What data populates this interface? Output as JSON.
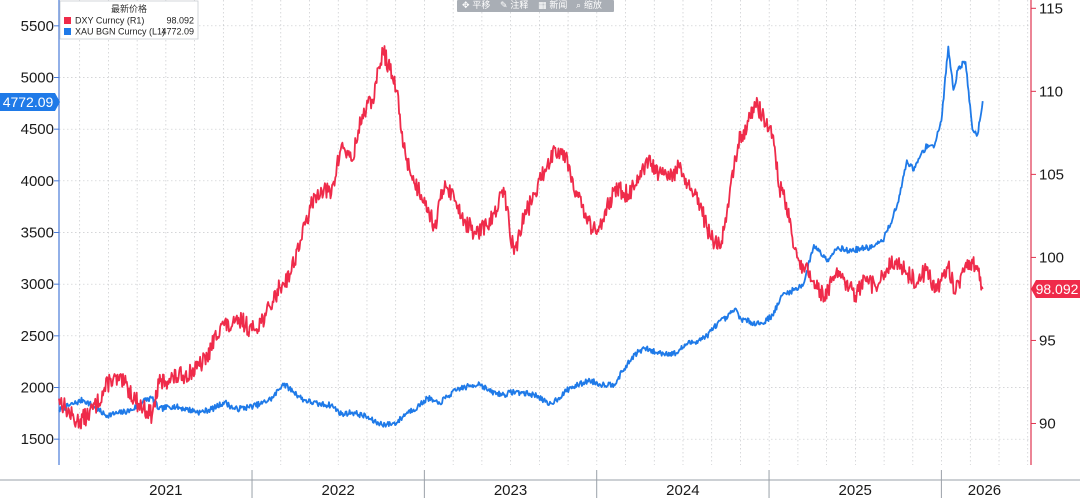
{
  "toolbar": {
    "items": [
      "✥ 平移",
      "✎ 注释",
      "▦ 新闻",
      "⌕ 缩放"
    ]
  },
  "legend": {
    "title": "最新价格",
    "entries": [
      {
        "label": "DXY Curncy  (R1)",
        "value": "98.092",
        "color": "#ef2b4a"
      },
      {
        "label": "XAU BGN Curncy  (L1)",
        "value": "4772.09",
        "color": "#1f7ae8"
      }
    ]
  },
  "tags": {
    "left_value": "4772.09",
    "right_value": "98.092"
  },
  "chart_data": {
    "type": "line",
    "title": "",
    "left_axis": {
      "ylim": [
        1250,
        5750
      ],
      "ticks": [
        1500,
        2000,
        2500,
        3000,
        3500,
        4000,
        4500,
        5000,
        5500
      ]
    },
    "right_axis": {
      "ylim": [
        87.5,
        115.5
      ],
      "ticks": [
        90,
        95,
        100,
        105,
        110,
        115
      ]
    },
    "x_axis": {
      "xlim": [
        2020.88,
        2026.52
      ],
      "year_labels": [
        "2021",
        "2022",
        "2023",
        "2024",
        "2025",
        "2026"
      ],
      "year_label_positions": [
        2021.5,
        2022.5,
        2023.5,
        2024.5,
        2025.5,
        2026.25
      ],
      "year_boundaries": [
        2022.0,
        2023.0,
        2024.0,
        2025.0,
        2026.0
      ]
    },
    "series": [
      {
        "name": "XAU BGN Curncy",
        "axis": "left",
        "color": "#1f7ae8",
        "points": [
          [
            2020.88,
            1780
          ],
          [
            2020.96,
            1840
          ],
          [
            2021.02,
            1880
          ],
          [
            2021.08,
            1820
          ],
          [
            2021.15,
            1730
          ],
          [
            2021.22,
            1750
          ],
          [
            2021.3,
            1780
          ],
          [
            2021.38,
            1880
          ],
          [
            2021.42,
            1900
          ],
          [
            2021.46,
            1790
          ],
          [
            2021.54,
            1820
          ],
          [
            2021.62,
            1790
          ],
          [
            2021.7,
            1760
          ],
          [
            2021.78,
            1800
          ],
          [
            2021.84,
            1860
          ],
          [
            2021.9,
            1790
          ],
          [
            2021.98,
            1810
          ],
          [
            2022.05,
            1840
          ],
          [
            2022.12,
            1900
          ],
          [
            2022.18,
            2040
          ],
          [
            2022.24,
            1960
          ],
          [
            2022.3,
            1880
          ],
          [
            2022.38,
            1840
          ],
          [
            2022.46,
            1830
          ],
          [
            2022.52,
            1740
          ],
          [
            2022.58,
            1760
          ],
          [
            2022.66,
            1720
          ],
          [
            2022.72,
            1660
          ],
          [
            2022.78,
            1640
          ],
          [
            2022.84,
            1660
          ],
          [
            2022.9,
            1760
          ],
          [
            2022.96,
            1810
          ],
          [
            2023.02,
            1900
          ],
          [
            2023.08,
            1840
          ],
          [
            2023.14,
            1920
          ],
          [
            2023.2,
            1990
          ],
          [
            2023.26,
            2010
          ],
          [
            2023.32,
            2040
          ],
          [
            2023.38,
            1960
          ],
          [
            2023.46,
            1930
          ],
          [
            2023.52,
            1960
          ],
          [
            2023.6,
            1940
          ],
          [
            2023.66,
            1920
          ],
          [
            2023.72,
            1830
          ],
          [
            2023.78,
            1900
          ],
          [
            2023.84,
            1990
          ],
          [
            2023.9,
            2030
          ],
          [
            2023.96,
            2070
          ],
          [
            2024.02,
            2030
          ],
          [
            2024.1,
            2030
          ],
          [
            2024.16,
            2180
          ],
          [
            2024.22,
            2320
          ],
          [
            2024.28,
            2380
          ],
          [
            2024.34,
            2340
          ],
          [
            2024.4,
            2330
          ],
          [
            2024.46,
            2330
          ],
          [
            2024.52,
            2420
          ],
          [
            2024.58,
            2450
          ],
          [
            2024.64,
            2500
          ],
          [
            2024.7,
            2620
          ],
          [
            2024.76,
            2680
          ],
          [
            2024.8,
            2760
          ],
          [
            2024.84,
            2660
          ],
          [
            2024.9,
            2630
          ],
          [
            2024.96,
            2620
          ],
          [
            2025.02,
            2700
          ],
          [
            2025.08,
            2900
          ],
          [
            2025.14,
            2940
          ],
          [
            2025.2,
            3000
          ],
          [
            2025.26,
            3380
          ],
          [
            2025.3,
            3300
          ],
          [
            2025.34,
            3240
          ],
          [
            2025.4,
            3360
          ],
          [
            2025.46,
            3320
          ],
          [
            2025.52,
            3340
          ],
          [
            2025.6,
            3360
          ],
          [
            2025.66,
            3420
          ],
          [
            2025.72,
            3650
          ],
          [
            2025.76,
            3870
          ],
          [
            2025.8,
            4200
          ],
          [
            2025.84,
            4100
          ],
          [
            2025.88,
            4250
          ],
          [
            2025.92,
            4350
          ],
          [
            2025.96,
            4340
          ],
          [
            2026.0,
            4580
          ],
          [
            2026.04,
            5300
          ],
          [
            2026.07,
            4880
          ],
          [
            2026.1,
            5100
          ],
          [
            2026.14,
            5150
          ],
          [
            2026.18,
            4500
          ],
          [
            2026.21,
            4450
          ],
          [
            2026.24,
            4772
          ]
        ]
      },
      {
        "name": "DXY Curncy",
        "axis": "right",
        "color": "#ef2b4a",
        "points": [
          [
            2020.88,
            91.5
          ],
          [
            2020.92,
            90.9
          ],
          [
            2020.98,
            90.1
          ],
          [
            2021.04,
            90.4
          ],
          [
            2021.1,
            91.2
          ],
          [
            2021.18,
            92.7
          ],
          [
            2021.26,
            92.4
          ],
          [
            2021.34,
            91.2
          ],
          [
            2021.42,
            90.5
          ],
          [
            2021.46,
            92.4
          ],
          [
            2021.52,
            92.7
          ],
          [
            2021.6,
            92.9
          ],
          [
            2021.68,
            93.3
          ],
          [
            2021.74,
            94.0
          ],
          [
            2021.82,
            96.0
          ],
          [
            2021.88,
            95.8
          ],
          [
            2021.94,
            96.2
          ],
          [
            2022.0,
            95.6
          ],
          [
            2022.08,
            96.5
          ],
          [
            2022.16,
            98.2
          ],
          [
            2022.22,
            99.0
          ],
          [
            2022.28,
            101.0
          ],
          [
            2022.34,
            103.0
          ],
          [
            2022.4,
            104.2
          ],
          [
            2022.46,
            103.8
          ],
          [
            2022.52,
            106.8
          ],
          [
            2022.58,
            105.8
          ],
          [
            2022.64,
            108.6
          ],
          [
            2022.7,
            109.5
          ],
          [
            2022.76,
            112.5
          ],
          [
            2022.8,
            111.3
          ],
          [
            2022.84,
            110.0
          ],
          [
            2022.88,
            106.6
          ],
          [
            2022.94,
            104.5
          ],
          [
            2023.0,
            103.6
          ],
          [
            2023.06,
            101.8
          ],
          [
            2023.12,
            104.6
          ],
          [
            2023.18,
            103.4
          ],
          [
            2023.24,
            102.1
          ],
          [
            2023.3,
            101.4
          ],
          [
            2023.36,
            101.9
          ],
          [
            2023.42,
            102.8
          ],
          [
            2023.46,
            104.2
          ],
          [
            2023.52,
            100.2
          ],
          [
            2023.58,
            102.5
          ],
          [
            2023.64,
            103.8
          ],
          [
            2023.7,
            105.3
          ],
          [
            2023.76,
            106.6
          ],
          [
            2023.82,
            106.2
          ],
          [
            2023.88,
            104.0
          ],
          [
            2023.94,
            102.3
          ],
          [
            2024.0,
            101.4
          ],
          [
            2024.06,
            103.2
          ],
          [
            2024.12,
            104.1
          ],
          [
            2024.18,
            103.8
          ],
          [
            2024.24,
            104.5
          ],
          [
            2024.3,
            105.8
          ],
          [
            2024.36,
            105.0
          ],
          [
            2024.42,
            104.8
          ],
          [
            2024.48,
            105.4
          ],
          [
            2024.54,
            104.1
          ],
          [
            2024.6,
            103.1
          ],
          [
            2024.66,
            101.2
          ],
          [
            2024.72,
            100.6
          ],
          [
            2024.76,
            103.2
          ],
          [
            2024.82,
            106.8
          ],
          [
            2024.88,
            108.2
          ],
          [
            2024.92,
            109.3
          ],
          [
            2024.96,
            108.6
          ],
          [
            2025.02,
            107.4
          ],
          [
            2025.06,
            104.2
          ],
          [
            2025.1,
            103.3
          ],
          [
            2025.14,
            100.6
          ],
          [
            2025.2,
            99.4
          ],
          [
            2025.26,
            98.6
          ],
          [
            2025.32,
            97.6
          ],
          [
            2025.38,
            98.9
          ],
          [
            2025.44,
            98.5
          ],
          [
            2025.5,
            97.7
          ],
          [
            2025.56,
            98.6
          ],
          [
            2025.62,
            98.2
          ],
          [
            2025.68,
            99.2
          ],
          [
            2025.74,
            99.9
          ],
          [
            2025.8,
            99.0
          ],
          [
            2025.86,
            98.5
          ],
          [
            2025.92,
            99.4
          ],
          [
            2025.96,
            97.9
          ],
          [
            2026.0,
            98.6
          ],
          [
            2026.04,
            99.6
          ],
          [
            2026.08,
            97.8
          ],
          [
            2026.12,
            99.1
          ],
          [
            2026.16,
            99.8
          ],
          [
            2026.2,
            99.5
          ],
          [
            2026.24,
            98.1
          ]
        ]
      }
    ]
  }
}
